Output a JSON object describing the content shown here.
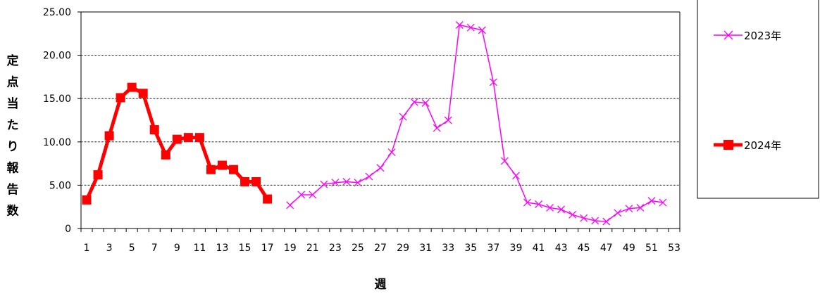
{
  "chart_data": {
    "type": "line",
    "title": "",
    "xlabel": "週",
    "ylabel": "定点当たり報告数",
    "ylim": [
      0,
      25
    ],
    "y_ticks": [
      "0",
      "5.00",
      "10.00",
      "15.00",
      "20.00",
      "25.00"
    ],
    "y_tick_values": [
      0,
      5,
      10,
      15,
      20,
      25
    ],
    "x_categories": [
      "1",
      "2",
      "3",
      "4",
      "5",
      "6",
      "7",
      "8",
      "9",
      "10",
      "11",
      "12",
      "13",
      "14",
      "15",
      "16",
      "17",
      "18",
      "19",
      "20",
      "21",
      "22",
      "23",
      "24",
      "25",
      "26",
      "27",
      "28",
      "29",
      "30",
      "31",
      "32",
      "33",
      "34",
      "35",
      "36",
      "37",
      "38",
      "39",
      "40",
      "41",
      "42",
      "43",
      "44",
      "45",
      "46",
      "47",
      "48",
      "49",
      "50",
      "51",
      "52",
      "53"
    ],
    "x_tick_labels": [
      "1",
      "3",
      "5",
      "7",
      "9",
      "11",
      "13",
      "15",
      "17",
      "19",
      "21",
      "23",
      "25",
      "27",
      "29",
      "31",
      "33",
      "35",
      "37",
      "39",
      "41",
      "43",
      "45",
      "47",
      "49",
      "51",
      "53"
    ],
    "grid": "horizontal",
    "legend_position": "right",
    "series": [
      {
        "name": "2023年",
        "color": "#ff00ff",
        "marker": "x",
        "points": [
          {
            "x": 19,
            "y": 2.7
          },
          {
            "x": 20,
            "y": 3.9
          },
          {
            "x": 21,
            "y": 3.9
          },
          {
            "x": 22,
            "y": 5.1
          },
          {
            "x": 23,
            "y": 5.3
          },
          {
            "x": 24,
            "y": 5.4
          },
          {
            "x": 25,
            "y": 5.3
          },
          {
            "x": 26,
            "y": 6.0
          },
          {
            "x": 27,
            "y": 7.0
          },
          {
            "x": 28,
            "y": 8.8
          },
          {
            "x": 29,
            "y": 12.9
          },
          {
            "x": 30,
            "y": 14.6
          },
          {
            "x": 31,
            "y": 14.5
          },
          {
            "x": 32,
            "y": 11.6
          },
          {
            "x": 33,
            "y": 12.5
          },
          {
            "x": 34,
            "y": 23.5
          },
          {
            "x": 35,
            "y": 23.2
          },
          {
            "x": 36,
            "y": 22.9
          },
          {
            "x": 37,
            "y": 16.9
          },
          {
            "x": 38,
            "y": 7.8
          },
          {
            "x": 39,
            "y": 6.1
          },
          {
            "x": 40,
            "y": 3.0
          },
          {
            "x": 41,
            "y": 2.8
          },
          {
            "x": 42,
            "y": 2.4
          },
          {
            "x": 43,
            "y": 2.2
          },
          {
            "x": 44,
            "y": 1.6
          },
          {
            "x": 45,
            "y": 1.2
          },
          {
            "x": 46,
            "y": 0.9
          },
          {
            "x": 47,
            "y": 0.8
          },
          {
            "x": 48,
            "y": 1.8
          },
          {
            "x": 49,
            "y": 2.3
          },
          {
            "x": 50,
            "y": 2.4
          },
          {
            "x": 51,
            "y": 3.2
          },
          {
            "x": 52,
            "y": 3.0
          }
        ]
      },
      {
        "name": "2024年",
        "color": "#ff0000",
        "marker": "square",
        "points": [
          {
            "x": 1,
            "y": 3.3
          },
          {
            "x": 2,
            "y": 6.2
          },
          {
            "x": 3,
            "y": 10.7
          },
          {
            "x": 4,
            "y": 15.1
          },
          {
            "x": 5,
            "y": 16.3
          },
          {
            "x": 6,
            "y": 15.6
          },
          {
            "x": 7,
            "y": 11.4
          },
          {
            "x": 8,
            "y": 8.5
          },
          {
            "x": 9,
            "y": 10.3
          },
          {
            "x": 10,
            "y": 10.5
          },
          {
            "x": 11,
            "y": 10.5
          },
          {
            "x": 12,
            "y": 6.8
          },
          {
            "x": 13,
            "y": 7.3
          },
          {
            "x": 14,
            "y": 6.8
          },
          {
            "x": 15,
            "y": 5.4
          },
          {
            "x": 16,
            "y": 5.4
          },
          {
            "x": 17,
            "y": 3.4
          }
        ]
      }
    ]
  }
}
